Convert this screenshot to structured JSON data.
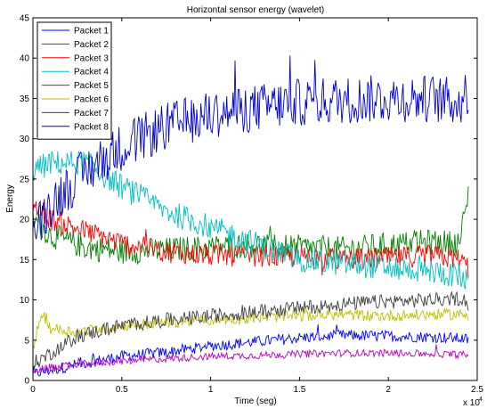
{
  "chart_data": {
    "type": "line",
    "title": "Horizontal sensor energy (wavelet)",
    "xlabel": "Time (seg)",
    "ylabel": "Energy",
    "x_exponent_label": "x 10",
    "x_exponent_power": "4",
    "xlim": [
      0,
      2.5
    ],
    "ylim": [
      0,
      45
    ],
    "x_ticks": [
      0,
      0.5,
      1,
      1.5,
      2,
      2.5
    ],
    "x_tick_labels": [
      "0",
      "0.5",
      "1",
      "1.5",
      "2",
      "2.5"
    ],
    "y_ticks": [
      0,
      5,
      10,
      15,
      20,
      25,
      30,
      35,
      40,
      45
    ],
    "y_tick_labels": [
      "0",
      "5",
      "10",
      "15",
      "20",
      "25",
      "30",
      "35",
      "40",
      "45"
    ],
    "grid": false,
    "legend_position": "top-left",
    "series": [
      {
        "name": "Packet 1",
        "color": "#0000ff",
        "x": [
          0,
          0.25,
          0.5,
          0.75,
          1.0,
          1.25,
          1.5,
          1.75,
          2.0,
          2.25,
          2.42,
          2.45
        ],
        "y": [
          0.8,
          2.0,
          3.0,
          3.5,
          4.3,
          4.8,
          5.3,
          5.6,
          5.5,
          5.4,
          5.2,
          5.0
        ],
        "noise": 0.7
      },
      {
        "name": "Packet 2",
        "color": "#008000",
        "x": [
          0,
          0.1,
          0.3,
          0.5,
          0.75,
          1.0,
          1.25,
          1.5,
          1.75,
          2.0,
          2.25,
          2.4,
          2.45
        ],
        "y": [
          20,
          18,
          16.5,
          16,
          16.2,
          16.5,
          16.8,
          16.5,
          16.3,
          16.8,
          17.2,
          17,
          23
        ],
        "noise": 1.6
      },
      {
        "name": "Packet 3",
        "color": "#ff0000",
        "x": [
          0,
          0.1,
          0.3,
          0.5,
          0.75,
          1.0,
          1.25,
          1.5,
          1.75,
          2.0,
          2.25,
          2.4,
          2.45
        ],
        "y": [
          22,
          20,
          18.5,
          17,
          16,
          15.5,
          15.5,
          15.3,
          15,
          15.2,
          15.5,
          15,
          14
        ],
        "noise": 1.4
      },
      {
        "name": "Packet 4",
        "color": "#00bfbf",
        "x": [
          0,
          0.1,
          0.3,
          0.5,
          0.75,
          1.0,
          1.25,
          1.5,
          1.75,
          2.0,
          2.25,
          2.4,
          2.45
        ],
        "y": [
          26,
          27,
          27,
          24,
          21,
          19,
          17,
          15,
          14.5,
          14,
          13.5,
          13,
          12
        ],
        "noise": 1.6
      },
      {
        "name": "Packet 5",
        "color": "#bf00bf",
        "x": [
          0,
          0.25,
          0.5,
          0.75,
          1.0,
          1.25,
          1.5,
          1.75,
          2.0,
          2.25,
          2.42,
          2.45
        ],
        "y": [
          1.2,
          2.0,
          2.4,
          2.7,
          3.0,
          3.1,
          3.3,
          3.4,
          3.4,
          3.3,
          3.2,
          3.1
        ],
        "noise": 0.45
      },
      {
        "name": "Packet 6",
        "color": "#bfbf00",
        "x": [
          0,
          0.05,
          0.1,
          0.25,
          0.5,
          0.75,
          1.0,
          1.25,
          1.5,
          1.75,
          2.0,
          2.25,
          2.42,
          2.45
        ],
        "y": [
          4,
          8.5,
          6.5,
          6.0,
          6.8,
          7.2,
          7.5,
          7.8,
          8.0,
          8.2,
          8.0,
          8.2,
          8.2,
          8.0
        ],
        "noise": 0.7
      },
      {
        "name": "Packet 7",
        "color": "#404040",
        "x": [
          0,
          0.25,
          0.5,
          0.75,
          1.0,
          1.25,
          1.5,
          1.75,
          2.0,
          2.25,
          2.42,
          2.45
        ],
        "y": [
          2,
          5.5,
          6.8,
          7.5,
          8.0,
          8.5,
          9.0,
          9.5,
          9.8,
          10.0,
          10.2,
          9.5
        ],
        "noise": 0.9
      },
      {
        "name": "Packet 8",
        "color": "#0000cc",
        "x": [
          0,
          0.1,
          0.3,
          0.5,
          0.75,
          1.0,
          1.25,
          1.5,
          1.75,
          2.0,
          2.25,
          2.4,
          2.45
        ],
        "y": [
          18,
          22,
          26,
          29,
          31.5,
          33,
          33.8,
          34.5,
          34.8,
          35,
          35,
          34.5,
          36
        ],
        "noise": 3.0
      }
    ]
  }
}
